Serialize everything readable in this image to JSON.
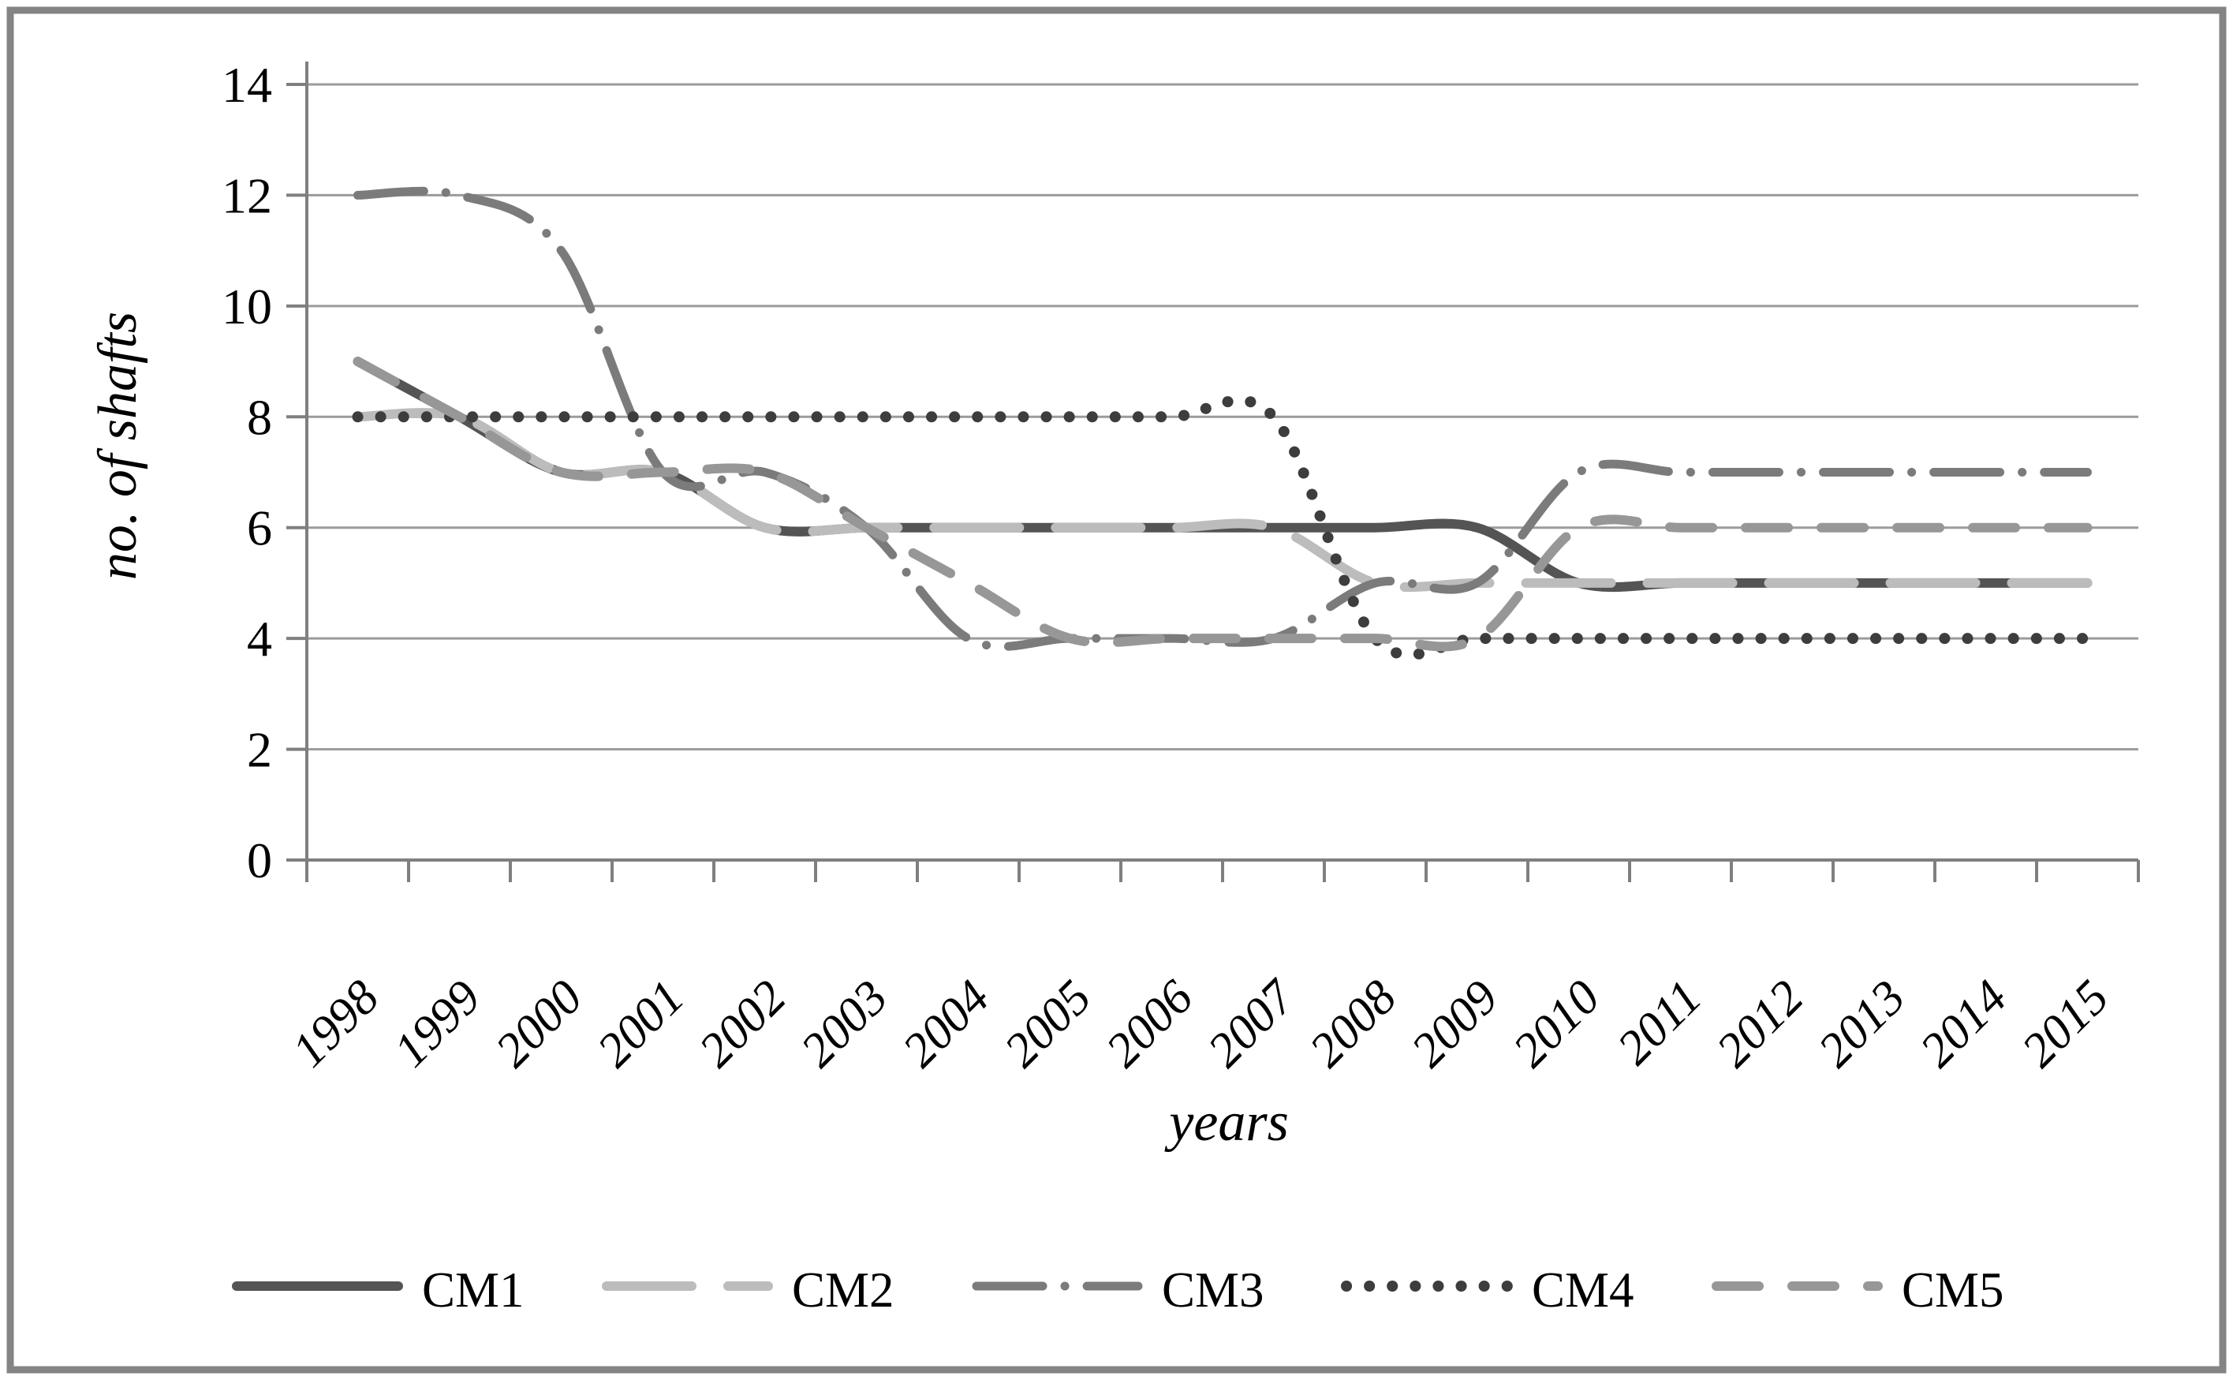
{
  "chart_data": {
    "type": "line",
    "title": "",
    "xlabel": "years",
    "ylabel": "no. of shafts",
    "x": [
      "1998",
      "1999",
      "2000",
      "2001",
      "2002",
      "2003",
      "2004",
      "2005",
      "2006",
      "2007",
      "2008",
      "2009",
      "2010",
      "2011",
      "2012",
      "2013",
      "2014",
      "2015"
    ],
    "series": [
      {
        "name": "CM1",
        "style": "solid",
        "color": "#545454",
        "values": [
          9,
          8,
          7,
          7,
          6,
          6,
          6,
          6,
          6,
          6,
          6,
          6,
          5,
          5,
          5,
          5,
          5,
          5
        ]
      },
      {
        "name": "CM2",
        "style": "long-dash",
        "color": "#bcbcbc",
        "values": [
          8,
          8,
          7,
          7,
          6,
          6,
          6,
          6,
          6,
          6,
          5,
          5,
          5,
          5,
          5,
          5,
          5,
          5
        ]
      },
      {
        "name": "CM3",
        "style": "dash-dot",
        "color": "#7b7b7b",
        "values": [
          12,
          12,
          11,
          7,
          7,
          6,
          4,
          4,
          4,
          4,
          5,
          5,
          7,
          7,
          7,
          7,
          7,
          7
        ]
      },
      {
        "name": "CM4",
        "style": "dot",
        "color": "#3d3d3d",
        "values": [
          8,
          8,
          8,
          8,
          8,
          8,
          8,
          8,
          8,
          8,
          4,
          4,
          4,
          4,
          4,
          4,
          4,
          4
        ]
      },
      {
        "name": "CM5",
        "style": "dash",
        "color": "#979797",
        "values": [
          9,
          8,
          7,
          7,
          7,
          6,
          5,
          4,
          4,
          4,
          4,
          4,
          6,
          6,
          6,
          6,
          6,
          6
        ]
      }
    ],
    "ylim": [
      0,
      14
    ],
    "yticks": [
      0,
      2,
      4,
      6,
      8,
      10,
      12,
      14
    ],
    "grid": true,
    "legend_position": "bottom",
    "colors": {
      "gridline": "#9b9b9b",
      "axis": "#7f7f7f",
      "border": "#848484",
      "background": "#ffffff"
    }
  }
}
